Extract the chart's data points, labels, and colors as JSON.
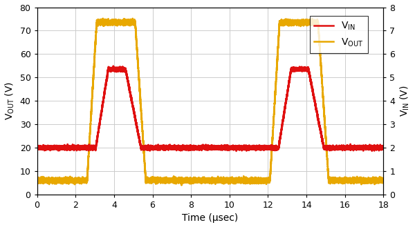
{
  "xlabel": "Time (μsec)",
  "ylabel_left": "V$_\\mathrm{OUT}$ (V)",
  "ylabel_right": "V$_\\mathrm{IN}$ (V)",
  "legend_vin": "V$_\\mathrm{IN}$",
  "legend_vout": "V$_\\mathrm{OUT}$",
  "xlim": [
    0,
    18
  ],
  "ylim_left": [
    0,
    80
  ],
  "ylim_right": [
    0,
    8
  ],
  "xticks": [
    0,
    2,
    4,
    6,
    8,
    10,
    12,
    14,
    16,
    18
  ],
  "yticks_left": [
    0,
    10,
    20,
    30,
    40,
    50,
    60,
    70,
    80
  ],
  "yticks_right": [
    0,
    1,
    2,
    3,
    4,
    5,
    6,
    7,
    8
  ],
  "grid_color": "#cccccc",
  "background_color": "#ffffff",
  "vin_color": "#e01010",
  "vout_color": "#e8a800",
  "linewidth": 1.8,
  "vin_low_scaled": 20.0,
  "vin_high_scaled": 53.5,
  "vout_low_scaled": 6.0,
  "vout_high_scaled": 73.5,
  "vin_pulse1_start": 3.05,
  "vin_pulse1_peak_start": 3.7,
  "vin_pulse1_peak_end": 4.6,
  "vin_pulse1_end": 5.4,
  "vin_pulse2_start": 12.55,
  "vin_pulse2_peak_start": 13.2,
  "vin_pulse2_peak_end": 14.1,
  "vin_pulse2_end": 14.9,
  "vout_pulse1_start": 2.6,
  "vout_pulse1_top_start": 3.1,
  "vout_pulse1_top_end": 5.1,
  "vout_pulse1_end": 5.65,
  "vout_pulse2_start": 12.1,
  "vout_pulse2_top_start": 12.6,
  "vout_pulse2_top_end": 14.6,
  "vout_pulse2_end": 15.15,
  "noise_vin": 0.4,
  "noise_vout": 0.5
}
